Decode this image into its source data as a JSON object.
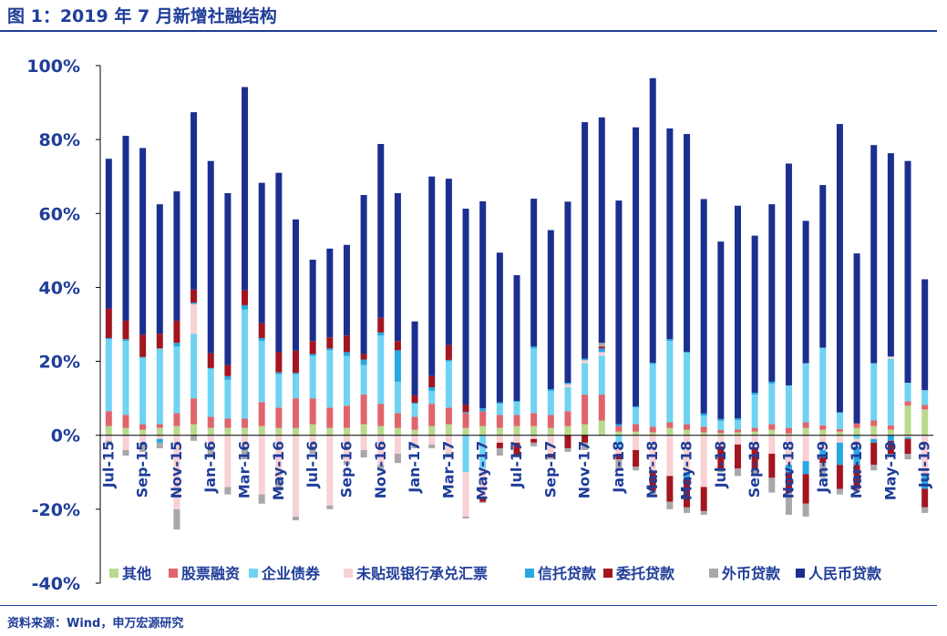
{
  "title": "图 1：2019 年 7 月新增社融结构",
  "source": "资料来源：Wind，申万宏源研究",
  "chart_data": {
    "type": "bar",
    "stacked": true,
    "ylim": [
      -40,
      100
    ],
    "yticks": [
      -40,
      -20,
      0,
      20,
      40,
      60,
      80,
      100
    ],
    "ytick_labels": [
      "-40%",
      "-20%",
      "0%",
      "20%",
      "40%",
      "60%",
      "80%",
      "100%"
    ],
    "xtick_labels": [
      "Jul-15",
      "Sep-15",
      "Nov-15",
      "Jan-16",
      "Mar-16",
      "May-16",
      "Jul-16",
      "Sep-16",
      "Nov-16",
      "Jan-17",
      "Mar-17",
      "May-17",
      "Jul-17",
      "Sep-17",
      "Nov-17",
      "Jan-18",
      "Mar-18",
      "May-18",
      "Jul-18",
      "Sep-18",
      "Nov-18",
      "Jan-19",
      "Mar-19",
      "May-19",
      "Jul-19"
    ],
    "categories": [
      "Jul-15",
      "Aug-15",
      "Sep-15",
      "Oct-15",
      "Nov-15",
      "Dec-15",
      "Jan-16",
      "Feb-16",
      "Mar-16",
      "Apr-16",
      "May-16",
      "Jun-16",
      "Jul-16",
      "Aug-16",
      "Sep-16",
      "Oct-16",
      "Nov-16",
      "Dec-16",
      "Jan-17",
      "Feb-17",
      "Mar-17",
      "Apr-17",
      "May-17",
      "Jun-17",
      "Jul-17",
      "Aug-17",
      "Sep-17",
      "Oct-17",
      "Nov-17",
      "Dec-17",
      "Jan-18",
      "Feb-18",
      "Mar-18",
      "Apr-18",
      "May-18",
      "Jun-18",
      "Jul-18",
      "Aug-18",
      "Sep-18",
      "Oct-18",
      "Nov-18",
      "Dec-18",
      "Jan-19",
      "Feb-19",
      "Mar-19",
      "Apr-19",
      "May-19",
      "Jun-19",
      "Jul-19"
    ],
    "legend_position": "bottom",
    "series": [
      {
        "name": "其他",
        "color": "#b9d98e",
        "values": [
          2.5,
          2,
          1.5,
          2,
          2.5,
          3,
          2,
          2,
          2,
          2.5,
          2,
          2,
          3,
          2,
          2,
          3,
          2.5,
          2,
          1.5,
          2.5,
          3,
          2,
          2.5,
          2,
          2.5,
          2.5,
          2,
          2.5,
          3,
          4,
          1,
          1,
          0.8,
          2,
          1.5,
          0.8,
          0.6,
          0.8,
          1,
          1.5,
          0.5,
          2,
          1.5,
          1,
          2,
          2.5,
          1.5,
          8,
          7
        ]
      },
      {
        "name": "股票融资",
        "color": "#e0646b",
        "values": [
          4,
          3.5,
          1.5,
          1,
          3.5,
          7,
          3,
          2.5,
          2.5,
          6.5,
          5.5,
          8,
          7,
          5.5,
          6,
          8,
          6,
          4,
          3.5,
          6,
          4.5,
          4,
          4,
          3.5,
          3,
          3.5,
          3.5,
          4,
          8,
          7,
          1.5,
          2,
          1.5,
          1.5,
          1.5,
          1.5,
          0.8,
          0.8,
          1,
          1.5,
          1.5,
          1.5,
          1.2,
          0.7,
          1.2,
          1.5,
          1.2,
          1.2,
          1.2
        ]
      },
      {
        "name": "企业债券",
        "color": "#6fd3f1",
        "values": [
          19.5,
          20,
          18,
          20.5,
          18,
          17.5,
          13,
          10.5,
          29.5,
          16.5,
          9,
          6.5,
          11.5,
          15.5,
          13.5,
          8,
          18.5,
          8.5,
          3.5,
          3.5,
          12.5,
          -10,
          -9,
          3,
          3.5,
          17.5,
          6.5,
          6.5,
          8.5,
          10.5,
          -3.5,
          4.5,
          17,
          22,
          19.5,
          3,
          2.5,
          2.5,
          9,
          11,
          11.5,
          16,
          21,
          4.5,
          -1,
          15.5,
          18,
          5,
          4
        ]
      },
      {
        "name": "未贴现银行承兑汇票",
        "color": "#f8d1d4",
        "values": [
          -1.5,
          -4,
          -2,
          -1,
          -20,
          8,
          -3,
          -14,
          -3.5,
          -16,
          -12,
          -22,
          -3,
          -19,
          -7,
          -4,
          -8,
          -5,
          -2.5,
          -2.5,
          -5,
          -12,
          -8,
          -2,
          -2,
          -1,
          -5,
          0.8,
          0.8,
          1,
          -1.5,
          -4,
          -10,
          -11,
          -10,
          -14,
          -3,
          -2.5,
          -3.5,
          -5,
          -8,
          -7,
          -4,
          -2,
          -2,
          -1,
          0.6,
          -0.5,
          -11
        ]
      },
      {
        "name": "信托贷款",
        "color": "#27a8e0",
        "values": [
          0.3,
          0.5,
          0.2,
          -1,
          1,
          0.4,
          0.2,
          1,
          1.2,
          0.8,
          0.5,
          0.4,
          0.5,
          0.5,
          1,
          1.5,
          0.8,
          8.5,
          0.3,
          1,
          0.4,
          0.3,
          0.8,
          0.4,
          0.3,
          0.5,
          0.5,
          0.4,
          0.4,
          1,
          0.5,
          0.3,
          0.3,
          0.5,
          -2,
          0.6,
          0.5,
          0.5,
          0.5,
          0.5,
          -2,
          -3.5,
          -2,
          -6,
          -5,
          -1,
          -1.5,
          -0.5,
          -3.5
        ]
      },
      {
        "name": "委托贷款",
        "color": "#a3151f",
        "values": [
          8,
          5,
          6,
          4,
          6,
          3.5,
          4,
          3,
          4,
          4,
          5.5,
          6,
          3.5,
          3,
          4.5,
          1.5,
          4,
          2.5,
          2,
          3,
          4,
          2,
          -1,
          -1.5,
          -3.5,
          -1,
          -1,
          -3.5,
          -2,
          0.5,
          -1.5,
          -4.5,
          -5,
          -7,
          -7.5,
          -6.5,
          -6,
          -6.5,
          -6,
          -6.5,
          -5.5,
          -8,
          -1.5,
          -6.5,
          -6.5,
          -6,
          -3.5,
          -4,
          -5
        ]
      },
      {
        "name": "外币贷款",
        "color": "#a8a8aa",
        "values": [
          -1,
          -1.5,
          -2.5,
          -1.5,
          -5.5,
          -1.5,
          -3,
          -2,
          -3,
          -2.5,
          -3,
          -1,
          -2,
          -1,
          -1,
          -2,
          -1.5,
          -2.5,
          -1,
          -1,
          -1,
          -0.5,
          -0.3,
          -2,
          -0.5,
          -1,
          -0.5,
          -1,
          -2,
          1,
          -3,
          -1,
          -1.5,
          -2,
          -1.5,
          -1,
          -1,
          -2,
          -1.5,
          -4,
          -6,
          -3.5,
          -4,
          -1.5,
          -1,
          -1.5,
          -1,
          -1.5,
          -1.5
        ]
      },
      {
        "name": "人民币贷款",
        "color": "#1b2f8f",
        "values": [
          40.5,
          50,
          50.5,
          35,
          35,
          48,
          52,
          46.5,
          55,
          38,
          48.5,
          35.5,
          22,
          24,
          24.5,
          43,
          47,
          40,
          20,
          54,
          45,
          53,
          56,
          40.5,
          34,
          40,
          43,
          49,
          64,
          61,
          60.5,
          75.5,
          77,
          57,
          59,
          58,
          48,
          57.5,
          42.5,
          48,
          60,
          38.5,
          44,
          78,
          46,
          59,
          55,
          60,
          30
        ]
      }
    ]
  }
}
